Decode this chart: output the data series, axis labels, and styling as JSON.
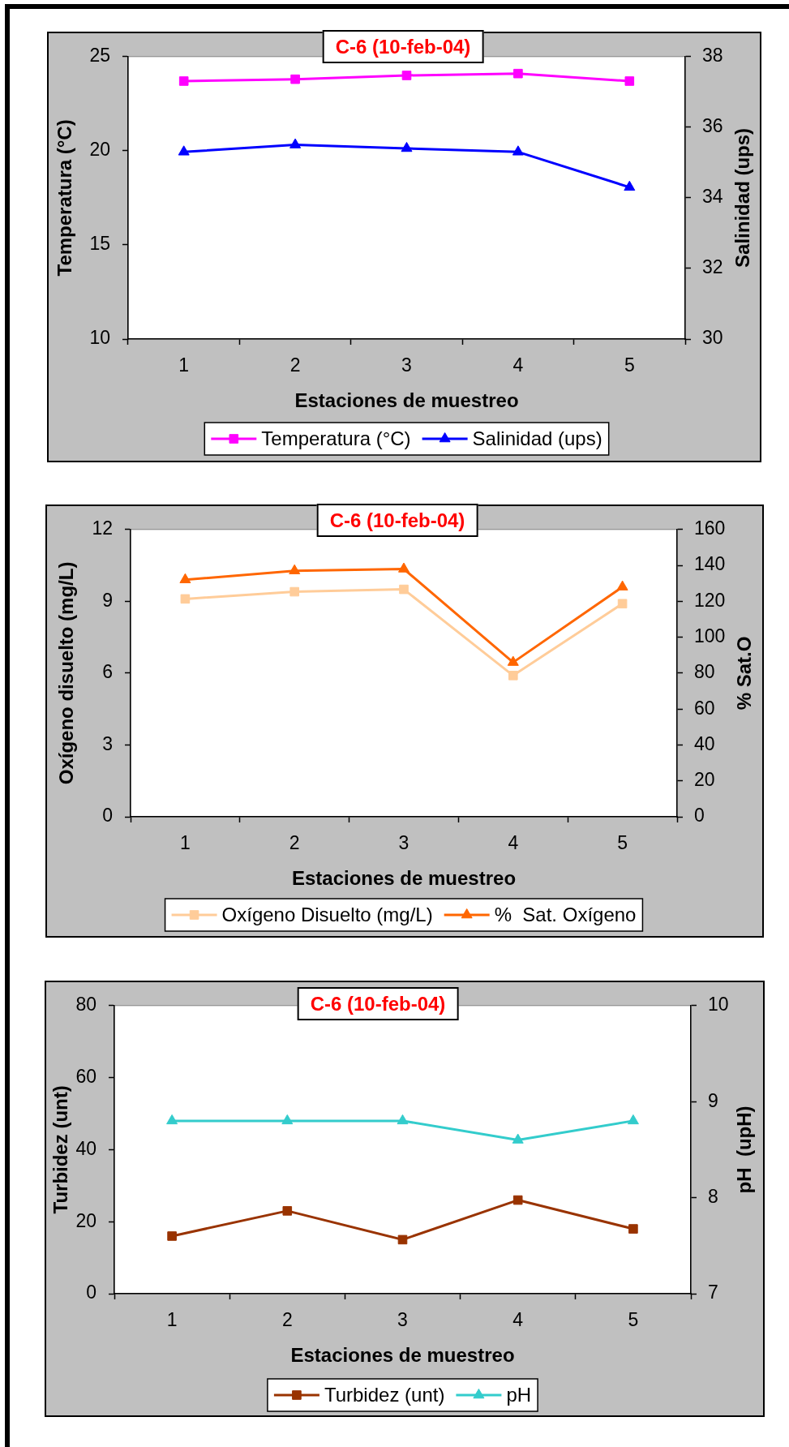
{
  "chart_data": [
    {
      "type": "line",
      "title": "C-6 (10-feb-04)",
      "xlabel": "Estaciones de muestreo",
      "ylabel": "Temperatura (°C)",
      "y2label": "Salinidad (ups)",
      "categories": [
        "1",
        "2",
        "3",
        "4",
        "5"
      ],
      "ylim": [
        10,
        25
      ],
      "yticks": [
        10,
        15,
        20,
        25
      ],
      "y2lim": [
        30,
        38
      ],
      "y2ticks": [
        30,
        32,
        34,
        36,
        38
      ],
      "legend": "bottom",
      "series": [
        {
          "name": "Temperatura (°C)",
          "color": "#ff00ff",
          "marker": "square",
          "values": [
            23.7,
            23.8,
            24.0,
            24.1,
            23.7
          ]
        },
        {
          "name": "Salinidad (ups)",
          "color": "#0000ff",
          "marker": "triangle",
          "axis": "y2",
          "values": [
            35.3,
            35.5,
            35.4,
            35.3,
            34.3
          ]
        }
      ]
    },
    {
      "type": "line",
      "title": "C-6 (10-feb-04)",
      "xlabel": "Estaciones de muestreo",
      "ylabel": "Oxígeno disuelto (mg/L)",
      "y2label": "% Sat.O",
      "categories": [
        "1",
        "2",
        "3",
        "4",
        "5"
      ],
      "ylim": [
        0,
        12
      ],
      "yticks": [
        0,
        3,
        6,
        9,
        12
      ],
      "y2lim": [
        0,
        160
      ],
      "y2ticks": [
        0,
        20,
        40,
        60,
        80,
        100,
        120,
        140,
        160
      ],
      "legend": "bottom",
      "series": [
        {
          "name": "Oxígeno Disuelto (mg/L)",
          "color": "#ffcc99",
          "marker": "square",
          "values": [
            9.1,
            9.4,
            9.5,
            5.9,
            8.9
          ]
        },
        {
          "name": "%  Sat. Oxígeno",
          "color": "#ff6600",
          "marker": "triangle",
          "axis": "y2",
          "values": [
            132,
            137,
            138,
            86,
            128
          ]
        }
      ]
    },
    {
      "type": "line",
      "title": "C-6 (10-feb-04)",
      "xlabel": "Estaciones de muestreo",
      "ylabel": "Turbidez (unt)",
      "y2label": "pH  (upH)",
      "categories": [
        "1",
        "2",
        "3",
        "4",
        "5"
      ],
      "ylim": [
        0,
        80
      ],
      "yticks": [
        0,
        20,
        40,
        60,
        80
      ],
      "y2lim": [
        7,
        10
      ],
      "y2ticks": [
        7,
        8,
        9,
        10
      ],
      "legend": "bottom",
      "series": [
        {
          "name": "Turbidez (unt)",
          "color": "#993300",
          "marker": "square",
          "values": [
            16,
            23,
            15,
            26,
            18
          ]
        },
        {
          "name": "pH",
          "color": "#33cccc",
          "marker": "triangle",
          "axis": "y2",
          "values": [
            8.8,
            8.8,
            8.8,
            8.6,
            8.8
          ]
        }
      ]
    }
  ]
}
